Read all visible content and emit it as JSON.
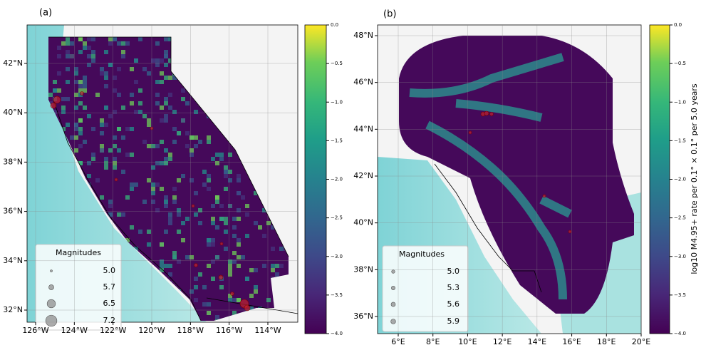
{
  "panels": [
    {
      "label": "(a)",
      "lon_ticks": [
        {
          "value": -126,
          "label": "126°W"
        },
        {
          "value": -124,
          "label": "124°W"
        },
        {
          "value": -122,
          "label": "122°W"
        },
        {
          "value": -120,
          "label": "120°W"
        },
        {
          "value": -118,
          "label": "118°W"
        },
        {
          "value": -116,
          "label": "116°W"
        },
        {
          "value": -114,
          "label": "114°W"
        }
      ],
      "lat_ticks": [
        {
          "value": 42,
          "label": "42°N"
        },
        {
          "value": 40,
          "label": "40°N"
        },
        {
          "value": 38,
          "label": "38°N"
        },
        {
          "value": 36,
          "label": "36°N"
        },
        {
          "value": 34,
          "label": "34°N"
        },
        {
          "value": 32,
          "label": "32°N"
        }
      ],
      "legend": {
        "title": "Magnitudes",
        "entries": [
          {
            "value": 5,
            "label": "5.0"
          },
          5.7,
          6.5,
          7.2
        ]
      },
      "colorbar": {
        "lim": [
          -4,
          0
        ],
        "ticks": [
          {
            "value": 0,
            "label": "0.0"
          },
          {
            "value": -0.5,
            "label": "−0.5"
          },
          {
            "value": -1,
            "label": "−1.0"
          },
          {
            "value": -1.5,
            "label": "−1.5"
          },
          {
            "value": -2,
            "label": "−2.0"
          },
          {
            "value": -2.5,
            "label": "−2.5"
          },
          {
            "value": -3,
            "label": "−3.0"
          },
          {
            "value": -3.5,
            "label": "−3.5"
          },
          {
            "value": -4,
            "label": "−4.0"
          }
        ]
      }
    },
    {
      "label": "(b)",
      "lon_ticks": [
        {
          "value": 6,
          "label": "6°E"
        },
        {
          "value": 8,
          "label": "8°E"
        },
        {
          "value": 10,
          "label": "10°E"
        },
        {
          "value": 12,
          "label": "12°E"
        },
        {
          "value": 14,
          "label": "14°E"
        },
        {
          "value": 16,
          "label": "16°E"
        },
        {
          "value": 18,
          "label": "18°E"
        },
        {
          "value": 20,
          "label": "20°E"
        }
      ],
      "lat_ticks": [
        {
          "value": 48,
          "label": "48°N"
        },
        {
          "value": 46,
          "label": "46°N"
        },
        {
          "value": 44,
          "label": "44°N"
        },
        {
          "value": 42,
          "label": "42°N"
        },
        {
          "value": 40,
          "label": "40°N"
        },
        {
          "value": 38,
          "label": "38°N"
        },
        {
          "value": 36,
          "label": "36°N"
        }
      ],
      "legend": {
        "title": "Magnitudes",
        "entries": [
          {
            "value": 5,
            "label": "5.0"
          },
          5.3,
          5.6,
          5.9
        ]
      },
      "colorbar": {
        "lim": [
          -4,
          0
        ],
        "ticks": [
          {
            "value": 0,
            "label": "0.0"
          },
          {
            "value": -0.5,
            "label": "−0.5"
          },
          {
            "value": -1,
            "label": "−1.0"
          },
          {
            "value": -1.5,
            "label": "−1.5"
          },
          {
            "value": -2,
            "label": "−2.0"
          },
          {
            "value": -2.5,
            "label": "−2.5"
          },
          {
            "value": -3,
            "label": "−3.0"
          },
          {
            "value": -3.5,
            "label": "−3.5"
          },
          {
            "value": -4,
            "label": "−4.0"
          }
        ]
      }
    }
  ],
  "colorbar_label": "log10 M4.95+ rate per 0.1° × 0.1° per 5.0 years"
}
